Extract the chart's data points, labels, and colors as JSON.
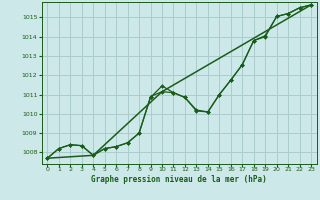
{
  "title": "Graphe pression niveau de la mer (hPa)",
  "background_color": "#cce8e8",
  "grid_color": "#aacccc",
  "line_color": "#1a5c1a",
  "xlim": [
    -0.5,
    23.5
  ],
  "ylim": [
    1007.4,
    1015.8
  ],
  "xticks": [
    0,
    1,
    2,
    3,
    4,
    5,
    6,
    7,
    8,
    9,
    10,
    11,
    12,
    13,
    14,
    15,
    16,
    17,
    18,
    19,
    20,
    21,
    22,
    23
  ],
  "yticks": [
    1008,
    1009,
    1010,
    1011,
    1012,
    1013,
    1014,
    1015
  ],
  "series_main": [
    [
      0,
      1007.7
    ],
    [
      1,
      1008.2
    ],
    [
      2,
      1008.4
    ],
    [
      3,
      1008.35
    ],
    [
      4,
      1007.85
    ],
    [
      5,
      1008.2
    ],
    [
      6,
      1008.3
    ],
    [
      7,
      1008.5
    ],
    [
      8,
      1009.0
    ],
    [
      9,
      1010.9
    ],
    [
      10,
      1011.15
    ],
    [
      11,
      1011.1
    ],
    [
      12,
      1010.85
    ],
    [
      13,
      1010.2
    ],
    [
      14,
      1010.1
    ],
    [
      15,
      1011.0
    ],
    [
      16,
      1011.75
    ],
    [
      17,
      1012.55
    ],
    [
      18,
      1013.8
    ],
    [
      19,
      1014.05
    ],
    [
      20,
      1015.05
    ],
    [
      21,
      1015.2
    ],
    [
      22,
      1015.5
    ],
    [
      23,
      1015.65
    ]
  ],
  "series_alt": [
    [
      0,
      1007.7
    ],
    [
      1,
      1008.2
    ],
    [
      2,
      1008.4
    ],
    [
      3,
      1008.35
    ],
    [
      4,
      1007.85
    ],
    [
      5,
      1008.2
    ],
    [
      6,
      1008.3
    ],
    [
      7,
      1008.5
    ],
    [
      8,
      1009.0
    ],
    [
      9,
      1010.85
    ],
    [
      10,
      1011.45
    ],
    [
      11,
      1011.1
    ],
    [
      12,
      1010.85
    ],
    [
      13,
      1010.15
    ],
    [
      14,
      1010.1
    ],
    [
      15,
      1011.0
    ],
    [
      16,
      1011.75
    ],
    [
      17,
      1012.55
    ],
    [
      18,
      1013.8
    ],
    [
      19,
      1014.0
    ],
    [
      20,
      1015.05
    ],
    [
      21,
      1015.2
    ],
    [
      22,
      1015.5
    ],
    [
      23,
      1015.65
    ]
  ],
  "series_trend": [
    [
      0,
      1007.7
    ],
    [
      4,
      1007.85
    ],
    [
      10,
      1011.15
    ],
    [
      23,
      1015.65
    ]
  ]
}
